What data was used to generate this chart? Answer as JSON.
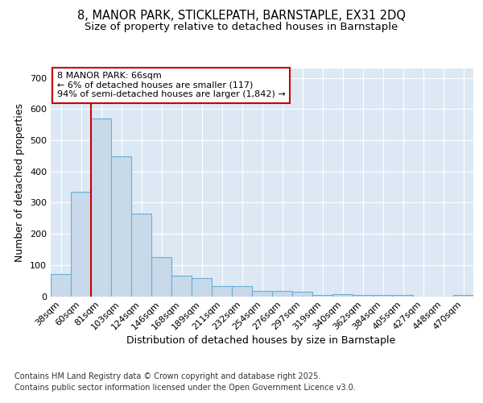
{
  "title_line1": "8, MANOR PARK, STICKLEPATH, BARNSTAPLE, EX31 2DQ",
  "title_line2": "Size of property relative to detached houses in Barnstaple",
  "xlabel": "Distribution of detached houses by size in Barnstaple",
  "ylabel": "Number of detached properties",
  "categories": [
    "38sqm",
    "60sqm",
    "81sqm",
    "103sqm",
    "124sqm",
    "146sqm",
    "168sqm",
    "189sqm",
    "211sqm",
    "232sqm",
    "254sqm",
    "276sqm",
    "297sqm",
    "319sqm",
    "340sqm",
    "362sqm",
    "384sqm",
    "405sqm",
    "427sqm",
    "448sqm",
    "470sqm"
  ],
  "values": [
    70,
    335,
    570,
    448,
    265,
    125,
    65,
    58,
    32,
    32,
    17,
    17,
    14,
    5,
    7,
    5,
    5,
    5,
    0,
    0,
    5
  ],
  "bar_color": "#c8d9ea",
  "bar_edge_color": "#6baed6",
  "marker_line_color": "#cc0000",
  "annotation_text": "8 MANOR PARK: 66sqm\n← 6% of detached houses are smaller (117)\n94% of semi-detached houses are larger (1,842) →",
  "annotation_box_color": "#cc0000",
  "ylim": [
    0,
    730
  ],
  "yticks": [
    0,
    100,
    200,
    300,
    400,
    500,
    600,
    700
  ],
  "background_color": "#dce9f5",
  "grid_color": "#ffffff",
  "footer_line1": "Contains HM Land Registry data © Crown copyright and database right 2025.",
  "footer_line2": "Contains public sector information licensed under the Open Government Licence v3.0.",
  "title_fontsize": 10.5,
  "subtitle_fontsize": 9.5,
  "axis_label_fontsize": 9,
  "tick_fontsize": 8,
  "annotation_fontsize": 8,
  "footer_fontsize": 7
}
